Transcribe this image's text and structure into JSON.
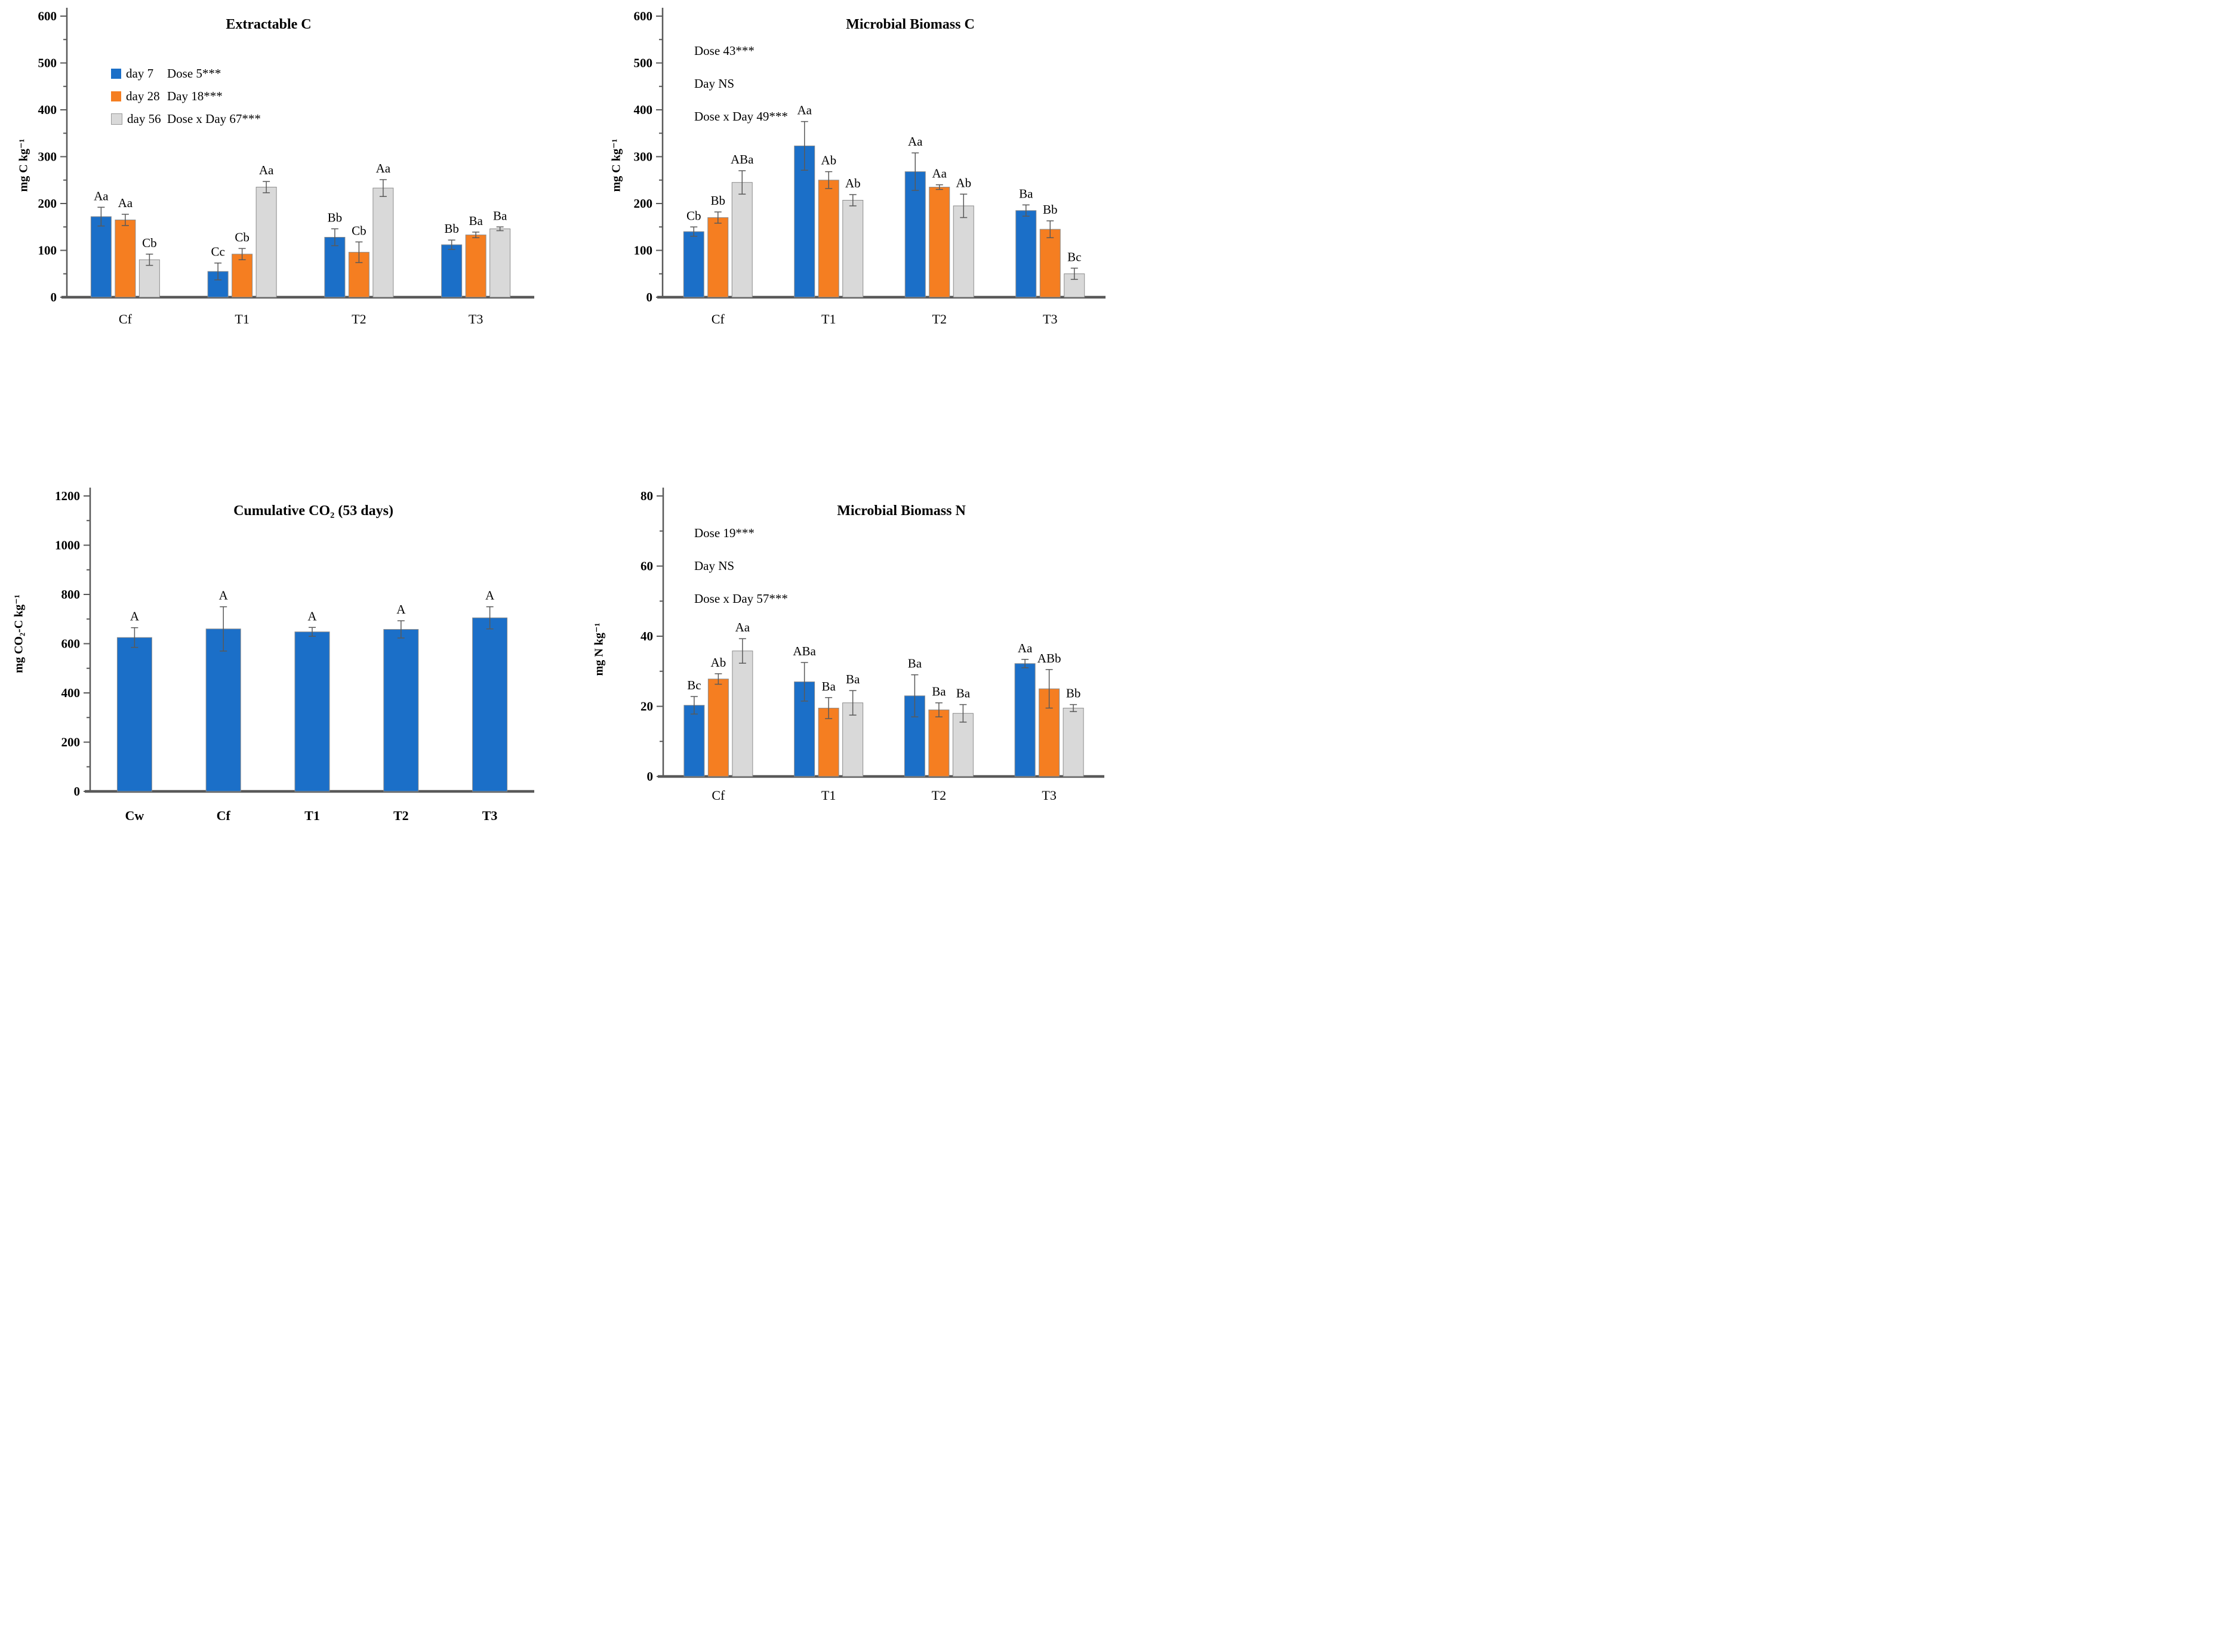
{
  "colors": {
    "day7": "#1B6FC8",
    "day28": "#F57E21",
    "day56": "#D9D9D9",
    "day56_border": "#8C8C8C",
    "bar_border": "#8C8C8C",
    "axis": "#595959",
    "error_bar": "#595959",
    "text": "#000000"
  },
  "legend": {
    "items": [
      {
        "label": "day 7"
      },
      {
        "label": "day 28"
      },
      {
        "label": "day 56"
      }
    ]
  },
  "chart_data": [
    {
      "id": "extractable-c",
      "type": "bar",
      "title": "Extractable C",
      "ylabel": "mg C kg⁻¹",
      "ylim": [
        0,
        600
      ],
      "ytick_step": 100,
      "yminor_step": 50,
      "grid": false,
      "error_bars": true,
      "legend_position": "inside-top-left",
      "categories": [
        "Cf",
        "T1",
        "T2",
        "T3"
      ],
      "annotations": [
        "Dose 5***",
        "Day 18***",
        "Dose x Day 67***"
      ],
      "series": [
        {
          "name": "day 7",
          "color": "day7",
          "values": [
            172,
            55,
            128,
            112
          ],
          "errors": [
            20,
            18,
            18,
            10
          ],
          "labels": [
            "Aa",
            "Cc",
            "Bb",
            "Bb"
          ]
        },
        {
          "name": "day 28",
          "color": "day28",
          "values": [
            165,
            92,
            96,
            133
          ],
          "errors": [
            12,
            12,
            22,
            6
          ],
          "labels": [
            "Aa",
            "Cb",
            "Cb",
            "Ba"
          ]
        },
        {
          "name": "day 56",
          "color": "day56",
          "values": [
            80,
            235,
            233,
            146
          ],
          "errors": [
            12,
            12,
            18,
            4
          ],
          "labels": [
            "Cb",
            "Aa",
            "Aa",
            "Ba"
          ]
        }
      ]
    },
    {
      "id": "microbial-biomass-c",
      "type": "bar",
      "title": "Microbial Biomass C",
      "ylabel": "mg C kg⁻¹",
      "ylim": [
        0,
        600
      ],
      "ytick_step": 100,
      "yminor_step": 50,
      "grid": false,
      "error_bars": true,
      "legend_position": "none",
      "categories": [
        "Cf",
        "T1",
        "T2",
        "T3"
      ],
      "annotations": [
        "Dose 43***",
        "Day NS",
        "Dose x Day 49***"
      ],
      "series": [
        {
          "name": "day 7",
          "color": "day7",
          "values": [
            140,
            323,
            268,
            185
          ],
          "errors": [
            10,
            52,
            40,
            12
          ],
          "labels": [
            "Cb",
            "Aa",
            "Aa",
            "Ba"
          ]
        },
        {
          "name": "day 28",
          "color": "day28",
          "values": [
            170,
            250,
            235,
            145
          ],
          "errors": [
            12,
            18,
            5,
            18
          ],
          "labels": [
            "Bb",
            "Ab",
            "Aa",
            "Bb"
          ]
        },
        {
          "name": "day 56",
          "color": "day56",
          "values": [
            245,
            207,
            195,
            50
          ],
          "errors": [
            25,
            12,
            25,
            12
          ],
          "labels": [
            "ABa",
            "Ab",
            "Ab",
            "Bc"
          ]
        }
      ]
    },
    {
      "id": "cumulative-co2",
      "type": "bar",
      "title": "Cumulative CO₂ (53 days)",
      "ylabel": "mg CO₂-C kg⁻¹",
      "ylim": [
        0,
        1200
      ],
      "ytick_step": 200,
      "yminor_step": 100,
      "grid": false,
      "error_bars": true,
      "legend_position": "none",
      "categories": [
        "Cw",
        "Cf",
        "T1",
        "T2",
        "T3"
      ],
      "annotations": [],
      "series": [
        {
          "name": "cumulative CO2-C",
          "color": "day7",
          "values": [
            625,
            660,
            648,
            658,
            705
          ],
          "errors": [
            40,
            90,
            18,
            35,
            45
          ],
          "labels": [
            "A",
            "A",
            "A",
            "A",
            "A"
          ]
        }
      ]
    },
    {
      "id": "microbial-biomass-n",
      "type": "bar",
      "title": "Microbial Biomass N",
      "ylabel": "mg N kg⁻¹",
      "ylim": [
        0,
        80
      ],
      "ytick_step": 20,
      "yminor_step": 10,
      "grid": false,
      "error_bars": true,
      "legend_position": "none",
      "categories": [
        "Cf",
        "T1",
        "T2",
        "T3"
      ],
      "annotations": [
        "Dose 19***",
        "Day NS",
        "Dose x Day 57***"
      ],
      "series": [
        {
          "name": "day 7",
          "color": "day7",
          "values": [
            20.3,
            27,
            23,
            32.2
          ],
          "errors": [
            2.5,
            5.5,
            6,
            1.2
          ],
          "labels": [
            "Bc",
            "ABa",
            "Ba",
            "Aa"
          ]
        },
        {
          "name": "day 28",
          "color": "day28",
          "values": [
            27.8,
            19.5,
            19,
            25
          ],
          "errors": [
            1.5,
            3,
            2,
            5.5
          ],
          "labels": [
            "Ab",
            "Ba",
            "Ba",
            "ABb"
          ]
        },
        {
          "name": "day 56",
          "color": "day56",
          "values": [
            35.8,
            21,
            18,
            19.5
          ],
          "errors": [
            3.5,
            3.5,
            2.5,
            1
          ],
          "labels": [
            "Aa",
            "Ba",
            "Ba",
            "Bb"
          ]
        }
      ]
    }
  ]
}
